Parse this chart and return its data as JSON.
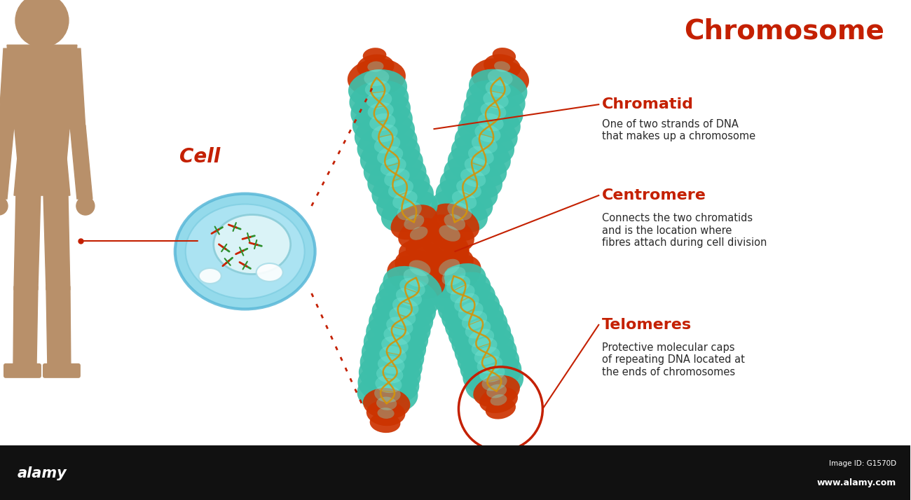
{
  "bg_color": "#ffffff",
  "black_bar_color": "#111111",
  "red_color": "#c42000",
  "body_color": "#b8906a",
  "teal_color": "#3dbfaa",
  "teal_dark": "#2a9980",
  "teal_light": "#80d8c8",
  "tip_color": "#cc3300",
  "dna_color": "#d4940a",
  "title": "Chromosome",
  "label_chromatid": "Chromatid",
  "desc_chromatid": "One of two strands of DNA\nthat makes up a chromosome",
  "label_centromere": "Centromere",
  "desc_centromere": "Connects the two chromatids\nand is the location where\nfibres attach during cell division",
  "label_telomeres": "Telomeres",
  "desc_telomeres": "Protective molecular caps\nof repeating DNA located at\nthe ends of chromosomes",
  "label_cell": "Cell",
  "image_id": "Image ID: G1570D",
  "website": "www.alamy.com",
  "alamy_text": "alamy"
}
